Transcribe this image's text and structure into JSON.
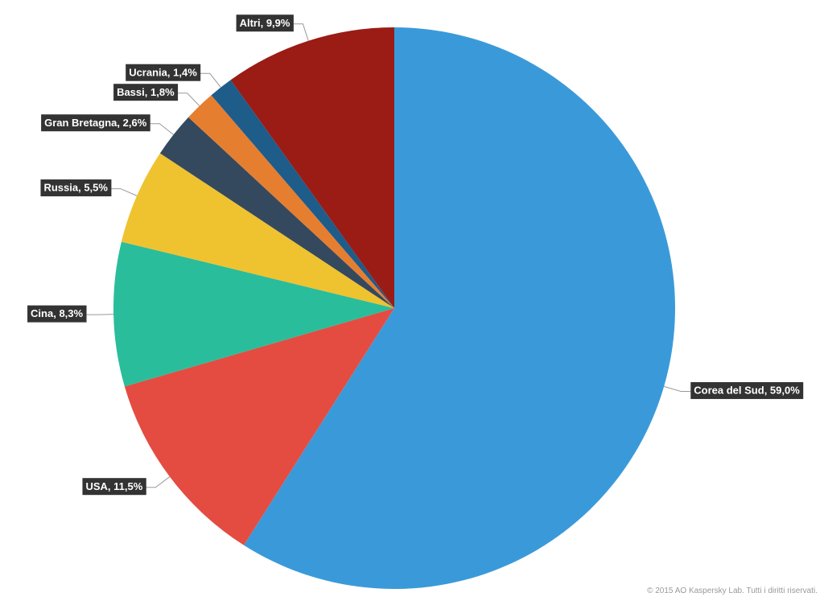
{
  "chart_data": {
    "type": "pie",
    "categories": [
      "Corea del Sud",
      "USA",
      "Cina",
      "Russia",
      "Gran Bretagna",
      "Bassi",
      "Ucrania",
      "Altri"
    ],
    "values": [
      59.0,
      11.5,
      8.3,
      5.5,
      2.6,
      1.8,
      1.4,
      9.9
    ],
    "value_labels": [
      "59,0%",
      "11,5%",
      "8,3%",
      "5,5%",
      "2,6%",
      "1,8%",
      "1,4%",
      "9,9%"
    ],
    "label_separator": ", ",
    "colors": [
      "#3a9ad9",
      "#e44c41",
      "#2abd9b",
      "#efc230",
      "#34495e",
      "#e67e30",
      "#1e5c8a",
      "#9b1b15"
    ],
    "source": "© 2015 AO Kaspersky Lab. Tutti i diritti riservati."
  }
}
